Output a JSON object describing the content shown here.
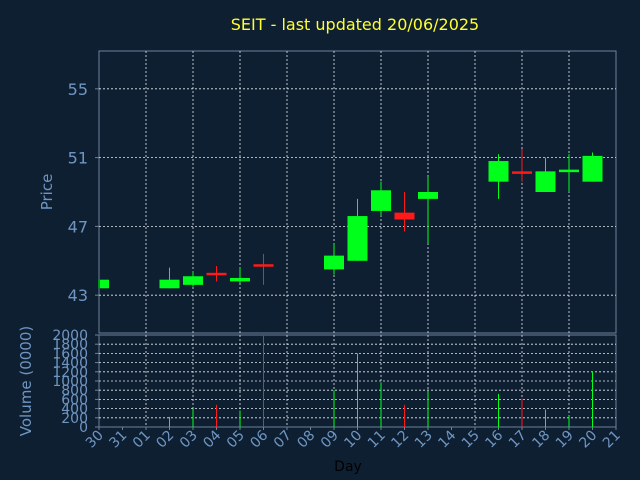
{
  "colors": {
    "background": "#0f1f32",
    "title": "#ffff33",
    "axis_text": "#6f96c2",
    "xlabel": "#000000",
    "frame": "#6e8199",
    "grid": "#e4e9ef",
    "up": "#00ff1a",
    "down": "#ff1a1a"
  },
  "chart_data": [
    {
      "type": "candlestick",
      "title": "SEIT - last updated 20/06/2025",
      "ylabel": "Price",
      "ylim": [
        40.8,
        57.2
      ],
      "yticks": [
        43,
        47,
        51,
        55
      ],
      "grid": true,
      "categories": [
        "30",
        "31",
        "01",
        "02",
        "03",
        "04",
        "05",
        "06",
        "07",
        "08",
        "09",
        "10",
        "11",
        "12",
        "13",
        "14",
        "15",
        "16",
        "17",
        "18",
        "19",
        "20",
        "21"
      ],
      "candles": [
        {
          "day": "30",
          "open": 43.4,
          "high": 43.9,
          "low": 43.4,
          "close": 43.9
        },
        {
          "day": "02",
          "open": 43.4,
          "high": 44.6,
          "low": 43.4,
          "close": 43.9
        },
        {
          "day": "03",
          "open": 43.6,
          "high": 44.4,
          "low": 43.5,
          "close": 44.1
        },
        {
          "day": "04",
          "open": 44.3,
          "high": 44.7,
          "low": 43.8,
          "close": 44.2
        },
        {
          "day": "05",
          "open": 43.8,
          "high": 44.6,
          "low": 43.7,
          "close": 44.0
        },
        {
          "day": "06",
          "open": 44.8,
          "high": 45.4,
          "low": 43.6,
          "close": 44.7
        },
        {
          "day": "09",
          "open": 44.5,
          "high": 46.0,
          "low": 44.2,
          "close": 45.3
        },
        {
          "day": "10",
          "open": 45.0,
          "high": 48.6,
          "low": 45.0,
          "close": 47.6
        },
        {
          "day": "11",
          "open": 47.9,
          "high": 49.6,
          "low": 47.6,
          "close": 49.1
        },
        {
          "day": "12",
          "open": 47.8,
          "high": 49.0,
          "low": 46.7,
          "close": 47.4
        },
        {
          "day": "13",
          "open": 48.6,
          "high": 49.9,
          "low": 46.0,
          "close": 49.0
        },
        {
          "day": "16",
          "open": 49.6,
          "high": 51.2,
          "low": 48.6,
          "close": 50.8
        },
        {
          "day": "17",
          "open": 50.2,
          "high": 51.5,
          "low": 49.6,
          "close": 50.1
        },
        {
          "day": "18",
          "open": 49.0,
          "high": 51.0,
          "low": 49.0,
          "close": 50.2
        },
        {
          "day": "19",
          "open": 50.2,
          "high": 51.2,
          "low": 49.0,
          "close": 50.3
        },
        {
          "day": "20",
          "open": 49.6,
          "high": 51.3,
          "low": 49.6,
          "close": 51.1
        }
      ]
    },
    {
      "type": "bar",
      "ylabel": "Volume (0000)",
      "xlabel": "Day",
      "ylim": [
        0,
        2000
      ],
      "yticks": [
        0,
        200,
        400,
        600,
        800,
        1000,
        1200,
        1400,
        1600,
        1800,
        2000
      ],
      "grid": true,
      "categories": [
        "30",
        "31",
        "01",
        "02",
        "03",
        "04",
        "05",
        "06",
        "07",
        "08",
        "09",
        "10",
        "11",
        "12",
        "13",
        "14",
        "15",
        "16",
        "17",
        "18",
        "19",
        "20",
        "21"
      ],
      "bars": [
        {
          "day": "30",
          "value": 0,
          "direction": "up"
        },
        {
          "day": "02",
          "value": 220,
          "direction": "up"
        },
        {
          "day": "03",
          "value": 400,
          "direction": "up"
        },
        {
          "day": "04",
          "value": 480,
          "direction": "down"
        },
        {
          "day": "05",
          "value": 360,
          "direction": "up"
        },
        {
          "day": "06",
          "value": 1980,
          "direction": "down"
        },
        {
          "day": "09",
          "value": 800,
          "direction": "up"
        },
        {
          "day": "10",
          "value": 1600,
          "direction": "up"
        },
        {
          "day": "11",
          "value": 970,
          "direction": "up"
        },
        {
          "day": "12",
          "value": 480,
          "direction": "down"
        },
        {
          "day": "13",
          "value": 780,
          "direction": "up"
        },
        {
          "day": "16",
          "value": 720,
          "direction": "up"
        },
        {
          "day": "17",
          "value": 620,
          "direction": "down"
        },
        {
          "day": "18",
          "value": 380,
          "direction": "up"
        },
        {
          "day": "19",
          "value": 250,
          "direction": "up"
        },
        {
          "day": "20",
          "value": 1200,
          "direction": "up"
        }
      ]
    }
  ]
}
